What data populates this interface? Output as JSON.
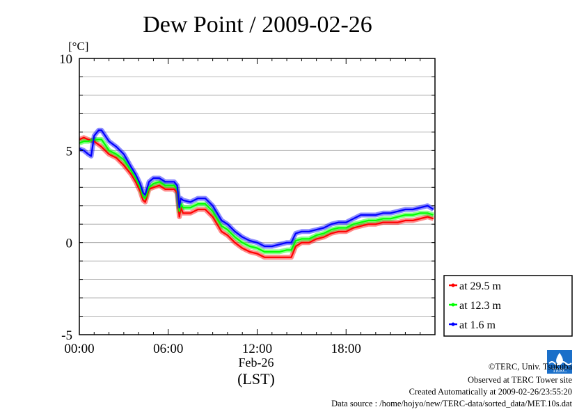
{
  "chart_data": {
    "type": "line",
    "title": "Dew Point / 2009-02-26",
    "ylabel": "[°C]",
    "xlabel": "(LST)",
    "date_label": "Feb-26",
    "xlim": [
      0,
      24
    ],
    "ylim": [
      -5,
      10
    ],
    "x_ticks": [
      {
        "value": 0,
        "label": "00:00"
      },
      {
        "value": 6,
        "label": "06:00"
      },
      {
        "value": 12,
        "label": "12:00"
      },
      {
        "value": 18,
        "label": "18:00"
      }
    ],
    "y_ticks": [
      {
        "value": -5,
        "label": "-5"
      },
      {
        "value": 0,
        "label": "0"
      },
      {
        "value": 5,
        "label": "5"
      },
      {
        "value": 10,
        "label": "10"
      }
    ],
    "grid": true,
    "legend_position": "bottom-right",
    "series": [
      {
        "name": "at 29.5 m",
        "color": "#ff0000",
        "x": [
          0,
          0.3,
          0.6,
          1.0,
          1.5,
          2.0,
          2.5,
          3.0,
          3.5,
          3.8,
          4.1,
          4.3,
          4.45,
          4.7,
          5.0,
          5.4,
          5.8,
          6.1,
          6.4,
          6.6,
          6.75,
          6.85,
          7.0,
          7.5,
          8.0,
          8.5,
          9.0,
          9.3,
          9.6,
          10.0,
          10.5,
          11.0,
          11.5,
          12.0,
          12.5,
          13.0,
          13.5,
          14.0,
          14.3,
          14.6,
          15.0,
          15.5,
          16.0,
          16.5,
          17.0,
          17.5,
          18.0,
          18.5,
          19.0,
          19.5,
          20.0,
          20.5,
          21.0,
          21.5,
          22.0,
          22.5,
          23.0,
          23.5,
          23.9
        ],
        "values": [
          5.6,
          5.7,
          5.6,
          5.5,
          5.2,
          4.8,
          4.6,
          4.2,
          3.7,
          3.3,
          2.8,
          2.3,
          2.2,
          2.9,
          3.0,
          3.1,
          2.9,
          2.9,
          2.9,
          2.7,
          1.4,
          1.9,
          1.6,
          1.6,
          1.8,
          1.8,
          1.4,
          1.0,
          0.6,
          0.4,
          0.0,
          -0.3,
          -0.5,
          -0.6,
          -0.8,
          -0.8,
          -0.8,
          -0.8,
          -0.8,
          -0.2,
          0.0,
          0.0,
          0.2,
          0.3,
          0.5,
          0.6,
          0.6,
          0.8,
          0.9,
          1.0,
          1.0,
          1.1,
          1.1,
          1.1,
          1.2,
          1.2,
          1.3,
          1.4,
          1.3
        ]
      },
      {
        "name": "at 12.3 m",
        "color": "#00ff00",
        "x": [
          0,
          0.3,
          0.6,
          1.0,
          1.5,
          2.0,
          2.5,
          3.0,
          3.5,
          3.8,
          4.1,
          4.3,
          4.45,
          4.7,
          5.0,
          5.4,
          5.8,
          6.1,
          6.4,
          6.6,
          6.75,
          6.85,
          7.0,
          7.5,
          8.0,
          8.5,
          9.0,
          9.3,
          9.6,
          10.0,
          10.5,
          11.0,
          11.5,
          12.0,
          12.5,
          13.0,
          13.5,
          14.0,
          14.3,
          14.6,
          15.0,
          15.5,
          16.0,
          16.5,
          17.0,
          17.5,
          18.0,
          18.5,
          19.0,
          19.5,
          20.0,
          20.5,
          21.0,
          21.5,
          22.0,
          22.5,
          23.0,
          23.5,
          23.9
        ],
        "values": [
          5.4,
          5.5,
          5.5,
          5.6,
          5.6,
          5.0,
          4.8,
          4.5,
          3.9,
          3.5,
          3.0,
          2.5,
          2.4,
          3.0,
          3.2,
          3.3,
          3.1,
          3.1,
          3.1,
          2.9,
          1.7,
          2.1,
          1.9,
          1.9,
          2.1,
          2.1,
          1.7,
          1.3,
          0.9,
          0.7,
          0.3,
          0.0,
          -0.2,
          -0.3,
          -0.5,
          -0.5,
          -0.5,
          -0.4,
          -0.4,
          0.1,
          0.2,
          0.2,
          0.4,
          0.5,
          0.7,
          0.8,
          0.8,
          1.0,
          1.1,
          1.2,
          1.2,
          1.3,
          1.3,
          1.4,
          1.5,
          1.5,
          1.6,
          1.6,
          1.5
        ]
      },
      {
        "name": "at 1.6 m",
        "color": "#0000ff",
        "x": [
          0,
          0.3,
          0.6,
          0.8,
          1.0,
          1.3,
          1.5,
          2.0,
          2.5,
          3.0,
          3.5,
          3.8,
          4.1,
          4.3,
          4.45,
          4.7,
          5.0,
          5.4,
          5.8,
          6.1,
          6.4,
          6.6,
          6.75,
          6.85,
          7.0,
          7.5,
          8.0,
          8.5,
          9.0,
          9.3,
          9.6,
          10.0,
          10.5,
          11.0,
          11.5,
          12.0,
          12.5,
          13.0,
          13.5,
          14.0,
          14.3,
          14.6,
          15.0,
          15.5,
          16.0,
          16.5,
          17.0,
          17.5,
          18.0,
          18.5,
          19.0,
          19.5,
          20.0,
          20.5,
          21.0,
          21.5,
          22.0,
          22.5,
          23.0,
          23.5,
          23.9
        ],
        "values": [
          5.1,
          5.0,
          4.8,
          4.7,
          5.8,
          6.1,
          6.1,
          5.5,
          5.2,
          4.8,
          4.1,
          3.7,
          3.2,
          2.7,
          2.6,
          3.3,
          3.5,
          3.5,
          3.3,
          3.3,
          3.3,
          3.1,
          1.9,
          2.4,
          2.3,
          2.2,
          2.4,
          2.4,
          2.0,
          1.6,
          1.2,
          1.0,
          0.6,
          0.3,
          0.1,
          0.0,
          -0.2,
          -0.2,
          -0.1,
          0.0,
          0.0,
          0.5,
          0.6,
          0.6,
          0.7,
          0.8,
          1.0,
          1.1,
          1.1,
          1.3,
          1.5,
          1.5,
          1.5,
          1.6,
          1.6,
          1.7,
          1.8,
          1.8,
          1.9,
          2.0,
          1.8
        ]
      }
    ]
  },
  "credits": {
    "copyright": "©TERC, Univ. Tsukuba",
    "observed": "Observed at TERC Tower site",
    "created": "Created Automatically at 2009-02-26/23:55:20",
    "source": "Data source : /home/hojyo/new/TERC-data/sorted_data/MET.10s.dat",
    "logo_text": "TERC"
  }
}
